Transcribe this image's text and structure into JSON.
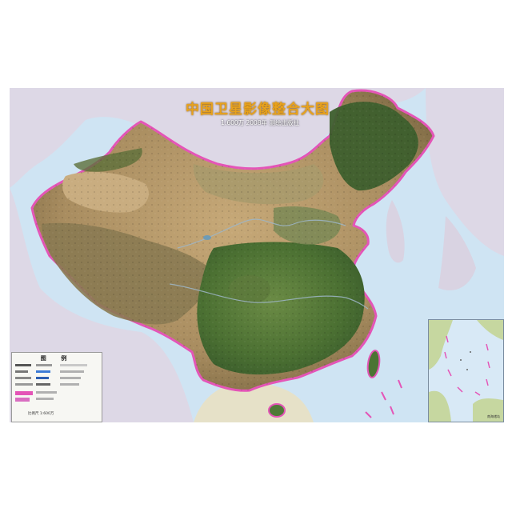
{
  "map": {
    "title": "中国卫星影像整合大图",
    "subtitle": "1:600万  2008年  测绘出版社",
    "legend_title": "图 例",
    "inset_label": "南海诸岛",
    "legend_scale": "比例尺 1:600万",
    "colors": {
      "ocean": "#cfe4f3",
      "border": "#e455b7",
      "desert": "#b89a6c",
      "plateau": "#8f8258",
      "forest": "#3f6b2e",
      "plain": "#6a8c4a",
      "title": "#e8a21d"
    }
  }
}
